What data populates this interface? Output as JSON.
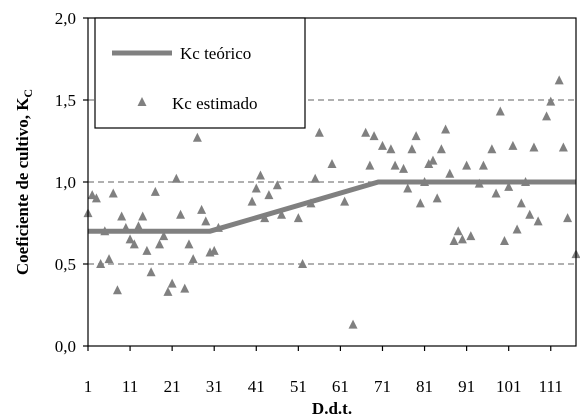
{
  "chart_data": {
    "type": "scatter",
    "xlabel": "D.d.t.",
    "ylabel": "Coeficiente de cultivo, K",
    "ylabel_sub": "C",
    "xlim": [
      1,
      117
    ],
    "ylim": [
      0,
      2
    ],
    "xticks": [
      1,
      11,
      21,
      31,
      41,
      51,
      61,
      71,
      81,
      91,
      101,
      111
    ],
    "xtick_labels": [
      "1",
      "11",
      "21",
      "31",
      "41",
      "51",
      "61",
      "71",
      "81",
      "91",
      "101",
      "111"
    ],
    "yticks": [
      0,
      0.5,
      1.0,
      1.5,
      2.0
    ],
    "ytick_labels": [
      "0,0",
      "0,5",
      "1,0",
      "1,5",
      "2,0"
    ],
    "grid": {
      "y": [
        0.5,
        1.0,
        1.5
      ],
      "style": "dashed"
    },
    "legend": {
      "placement": "top-left",
      "entries": [
        "Kc teórico",
        "Kc estimado"
      ]
    },
    "colors": {
      "line": "#808080",
      "marker": "#808080",
      "grid": "#808080"
    },
    "series": [
      {
        "name": "Kc teórico",
        "type": "line",
        "x": [
          1,
          30,
          70,
          117
        ],
        "y": [
          0.7,
          0.7,
          1.0,
          1.0
        ]
      },
      {
        "name": "Kc estimado",
        "type": "scatter",
        "marker": "triangle",
        "points": [
          [
            1,
            0.81
          ],
          [
            2,
            0.92
          ],
          [
            3,
            0.9
          ],
          [
            4,
            0.5
          ],
          [
            5,
            0.7
          ],
          [
            6,
            0.53
          ],
          [
            7,
            0.93
          ],
          [
            8,
            0.34
          ],
          [
            9,
            0.79
          ],
          [
            10,
            0.72
          ],
          [
            11,
            0.65
          ],
          [
            12,
            0.62
          ],
          [
            13,
            0.73
          ],
          [
            14,
            0.79
          ],
          [
            15,
            0.58
          ],
          [
            16,
            0.45
          ],
          [
            17,
            0.94
          ],
          [
            18,
            0.62
          ],
          [
            19,
            0.67
          ],
          [
            20,
            0.33
          ],
          [
            21,
            0.38
          ],
          [
            22,
            1.02
          ],
          [
            23,
            0.8
          ],
          [
            24,
            0.35
          ],
          [
            25,
            0.62
          ],
          [
            26,
            0.53
          ],
          [
            27,
            1.27
          ],
          [
            28,
            0.83
          ],
          [
            29,
            0.76
          ],
          [
            30,
            0.57
          ],
          [
            31,
            0.58
          ],
          [
            32,
            0.72
          ],
          [
            40,
            0.88
          ],
          [
            41,
            0.96
          ],
          [
            42,
            1.04
          ],
          [
            43,
            0.78
          ],
          [
            44,
            0.92
          ],
          [
            46,
            0.98
          ],
          [
            47,
            0.8
          ],
          [
            50,
            1.83
          ],
          [
            51,
            0.78
          ],
          [
            52,
            0.5
          ],
          [
            54,
            0.87
          ],
          [
            55,
            1.02
          ],
          [
            56,
            1.3
          ],
          [
            59,
            1.11
          ],
          [
            62,
            0.88
          ],
          [
            64,
            0.13
          ],
          [
            67,
            1.3
          ],
          [
            68,
            1.1
          ],
          [
            69,
            1.28
          ],
          [
            71,
            1.22
          ],
          [
            73,
            1.2
          ],
          [
            74,
            1.1
          ],
          [
            76,
            1.08
          ],
          [
            77,
            0.96
          ],
          [
            78,
            1.2
          ],
          [
            79,
            1.28
          ],
          [
            80,
            0.87
          ],
          [
            81,
            1.0
          ],
          [
            82,
            1.11
          ],
          [
            83,
            1.13
          ],
          [
            84,
            0.9
          ],
          [
            85,
            1.2
          ],
          [
            86,
            1.32
          ],
          [
            87,
            1.05
          ],
          [
            88,
            0.64
          ],
          [
            89,
            0.7
          ],
          [
            90,
            0.65
          ],
          [
            91,
            1.1
          ],
          [
            92,
            0.67
          ],
          [
            94,
            0.99
          ],
          [
            95,
            1.1
          ],
          [
            97,
            1.2
          ],
          [
            98,
            0.93
          ],
          [
            99,
            1.43
          ],
          [
            100,
            0.64
          ],
          [
            101,
            0.97
          ],
          [
            102,
            1.22
          ],
          [
            103,
            0.71
          ],
          [
            104,
            0.87
          ],
          [
            105,
            1.0
          ],
          [
            106,
            0.8
          ],
          [
            107,
            1.21
          ],
          [
            108,
            0.76
          ],
          [
            110,
            1.4
          ],
          [
            111,
            1.49
          ],
          [
            113,
            1.62
          ],
          [
            114,
            1.21
          ],
          [
            115,
            0.78
          ],
          [
            117,
            0.56
          ]
        ]
      }
    ]
  }
}
